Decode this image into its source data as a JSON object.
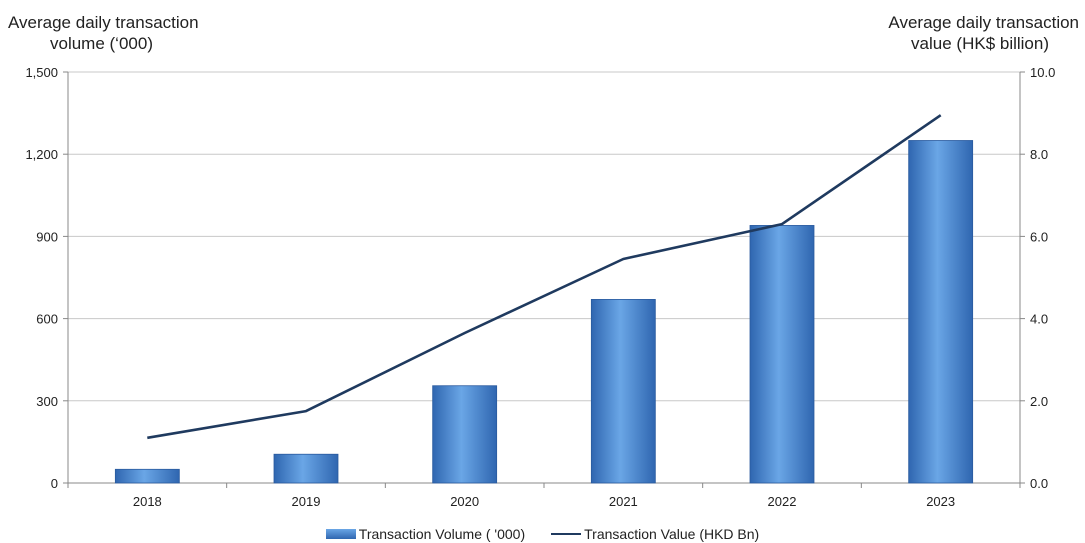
{
  "chart_data": {
    "type": "bar",
    "categories": [
      "2018",
      "2019",
      "2020",
      "2021",
      "2022",
      "2023"
    ],
    "series": [
      {
        "name": "Transaction Volume ( '000)",
        "type": "bar",
        "axis": "left",
        "values": [
          50,
          105,
          355,
          670,
          940,
          1250
        ]
      },
      {
        "name": "Transaction Value (HKD Bn)",
        "type": "line",
        "axis": "right",
        "values": [
          1.1,
          1.75,
          3.65,
          5.45,
          6.3,
          8.95
        ]
      }
    ],
    "ylabel_left_line1": "Average daily transaction",
    "ylabel_left_line2": "volume (‘000)",
    "ylabel_right_line1": "Average daily transaction",
    "ylabel_right_line2": "value (HK$ billion)",
    "yticks_left": [
      "0",
      "300",
      "600",
      "900",
      "1,200",
      "1,500"
    ],
    "yticks_right": [
      "0.0",
      "2.0",
      "4.0",
      "6.0",
      "8.0",
      "10.0"
    ],
    "ylim_left": [
      0,
      1500
    ],
    "ylim_right": [
      0,
      10
    ],
    "grid": true,
    "legend_position": "bottom",
    "colors": {
      "bar_top": "#6aa6e6",
      "bar_bottom": "#2f66b0",
      "line": "#1f3a5f",
      "grid": "#c8c8c8"
    }
  }
}
